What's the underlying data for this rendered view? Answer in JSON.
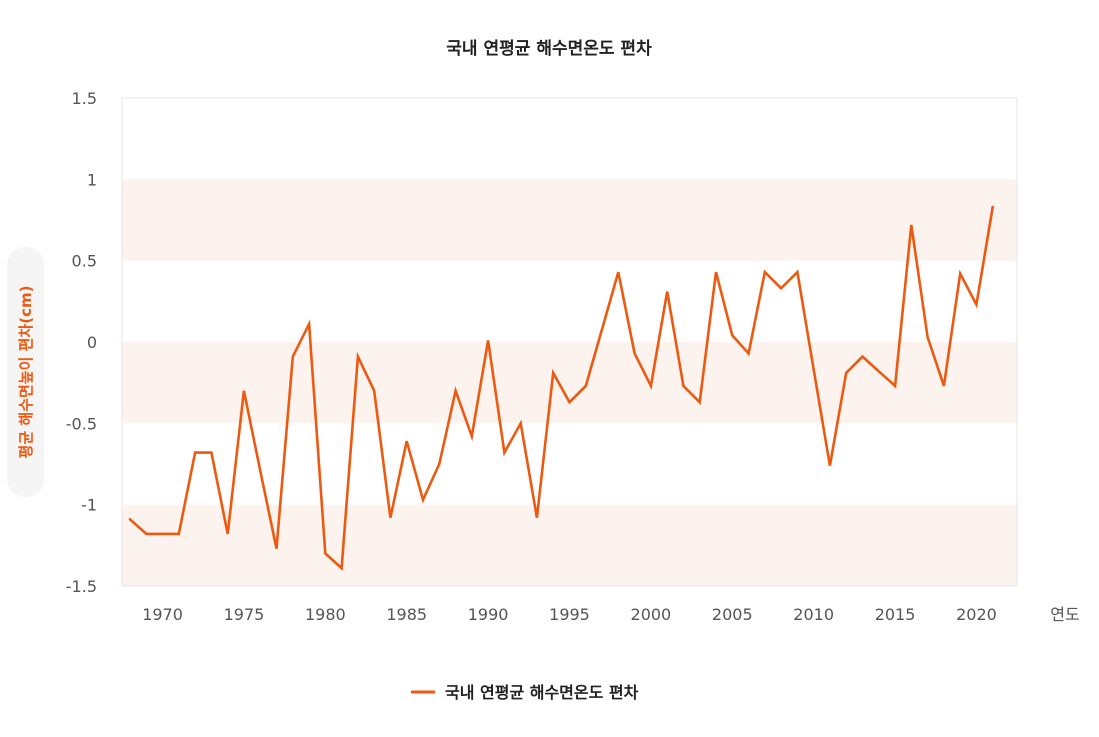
{
  "chart_data": {
    "type": "line",
    "title": "국내 연평균 해수면온도 편차",
    "xlabel": "연도",
    "ylabel": "평균 해수면높이 편차(cm)",
    "xlim": [
      1968,
      2022
    ],
    "ylim": [
      -1.5,
      1.5
    ],
    "xticks": [
      1970,
      1975,
      1980,
      1985,
      1990,
      1995,
      2000,
      2005,
      2010,
      2015,
      2020
    ],
    "yticks": [
      1.5,
      1,
      0.5,
      0,
      -0.5,
      -1,
      -1.5
    ],
    "yticklabels": [
      "1.5",
      "1",
      "0.5",
      "0",
      "-0.5",
      "-1",
      "-1.5"
    ],
    "band_color": "#fcf3ef",
    "legend": {
      "position": "bottom-center"
    },
    "series": [
      {
        "name": "국내 연평균 해수면온도 편차",
        "color": "#ec5a12",
        "x": [
          1968,
          1969,
          1970,
          1971,
          1972,
          1973,
          1974,
          1975,
          1976,
          1977,
          1978,
          1979,
          1980,
          1981,
          1982,
          1983,
          1984,
          1985,
          1986,
          1987,
          1988,
          1989,
          1990,
          1991,
          1992,
          1993,
          1994,
          1995,
          1996,
          1997,
          1998,
          1999,
          2000,
          2001,
          2002,
          2003,
          2004,
          2005,
          2006,
          2007,
          2008,
          2009,
          2010,
          2011,
          2012,
          2013,
          2014,
          2015,
          2016,
          2017,
          2018,
          2019,
          2020,
          2021
        ],
        "values": [
          -1.09,
          -1.18,
          -1.18,
          -1.18,
          -0.68,
          -0.68,
          -1.18,
          -0.3,
          -0.79,
          -1.27,
          -0.09,
          0.11,
          -1.3,
          -1.39,
          -0.09,
          -0.3,
          -1.08,
          -0.61,
          -0.97,
          -0.75,
          -0.3,
          -0.58,
          0.01,
          -0.68,
          -0.5,
          -1.08,
          -0.19,
          -0.37,
          -0.27,
          0.08,
          0.43,
          -0.07,
          -0.27,
          0.31,
          -0.27,
          -0.37,
          0.43,
          0.04,
          -0.07,
          0.43,
          0.33,
          0.43,
          -0.17,
          -0.76,
          -0.19,
          -0.09,
          -0.18,
          -0.27,
          0.72,
          0.03,
          -0.27,
          0.42,
          0.23,
          0.83
        ]
      }
    ]
  }
}
